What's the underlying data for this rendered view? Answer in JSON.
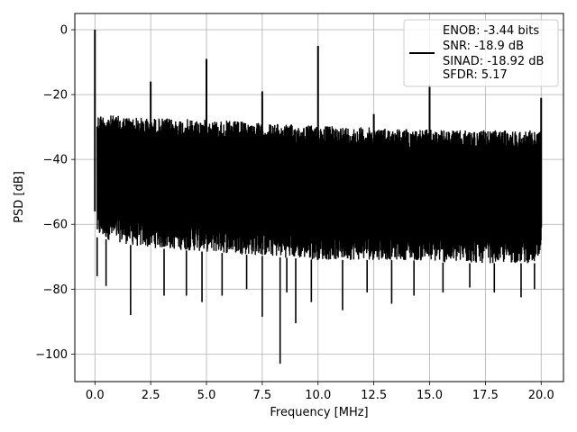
{
  "chart_data": {
    "type": "line",
    "xlabel": "Frequency [MHz]",
    "ylabel": "PSD [dB]",
    "xlim": [
      -0.9,
      21.0
    ],
    "ylim": [
      -108.5,
      5.0
    ],
    "x_ticks": [
      0.0,
      2.5,
      5.0,
      7.5,
      10.0,
      12.5,
      15.0,
      17.5,
      20.0
    ],
    "x_tick_labels": [
      "0.0",
      "2.5",
      "5.0",
      "7.5",
      "10.0",
      "12.5",
      "15.0",
      "17.5",
      "20.0"
    ],
    "y_ticks": [
      0,
      -20,
      -40,
      -60,
      -80,
      -100
    ],
    "y_tick_labels": [
      "0",
      "−20",
      "−40",
      "−60",
      "−80",
      "−100"
    ],
    "grid": true,
    "legend_placement": "top-right",
    "series": [
      {
        "color": "#000000",
        "upper_envelope": {
          "x": [
            0.1,
            2.0,
            4.0,
            6.0,
            8.0,
            10.0,
            12.0,
            14.0,
            16.0,
            18.0,
            20.0
          ],
          "y": [
            -26,
            -27,
            -27.5,
            -28,
            -29,
            -29.5,
            -30,
            -30.5,
            -31,
            -31,
            -31
          ]
        },
        "lower_envelope": {
          "x": [
            0.1,
            2.0,
            4.0,
            6.0,
            8.0,
            10.0,
            12.0,
            14.0,
            16.0,
            18.0,
            20.0
          ],
          "y": [
            -64,
            -67,
            -68,
            -69,
            -70,
            -71,
            -71,
            -71,
            -72,
            -72,
            -72
          ]
        },
        "peaks": {
          "x": [
            0.0,
            2.5,
            5.0,
            7.5,
            10.0,
            12.5,
            15.0,
            20.0
          ],
          "y": [
            0,
            -16,
            -9,
            -19,
            -5,
            -26,
            -17,
            -21
          ]
        },
        "dips": {
          "x": [
            0.1,
            0.5,
            1.6,
            3.1,
            4.1,
            4.8,
            5.7,
            6.8,
            7.5,
            8.3,
            8.6,
            9.0,
            9.7,
            11.1,
            12.2,
            13.3,
            14.3,
            15.6,
            16.8,
            17.9,
            19.1,
            19.7
          ],
          "y": [
            -76,
            -79,
            -88,
            -82,
            -82,
            -84,
            -82,
            -80,
            -88.5,
            -103,
            -81,
            -90.5,
            -84,
            -86.5,
            -81,
            -84.5,
            -82,
            -81,
            -79.5,
            -81,
            -82.5,
            -80
          ]
        }
      }
    ],
    "legend_entries": [
      "ENOB: -3.44 bits",
      "SNR: -18.9 dB",
      "SINAD: -18.92 dB",
      "SFDR: 5.17"
    ]
  }
}
